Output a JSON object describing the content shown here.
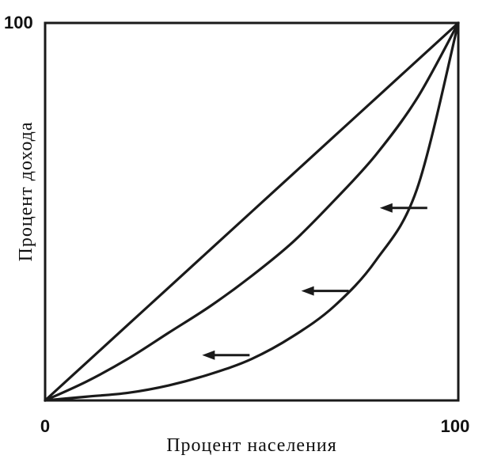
{
  "chart_data": {
    "type": "line",
    "title": "",
    "xlabel": "Процент населения",
    "ylabel": "Процент дохода",
    "xlim": [
      0,
      100
    ],
    "ylim": [
      0,
      100
    ],
    "x_ticks": [
      "0",
      "100"
    ],
    "y_ticks": [
      "100"
    ],
    "grid": false,
    "legend": "none",
    "series": [
      {
        "x": [
          0,
          10,
          20,
          30,
          40,
          50,
          60,
          70,
          80,
          90,
          100
        ],
        "y": [
          0,
          10,
          20,
          30,
          40,
          50,
          60,
          70,
          80,
          90,
          100
        ]
      },
      {
        "x": [
          0,
          10,
          20,
          30,
          40,
          50,
          60,
          70,
          80,
          90,
          100
        ],
        "y": [
          0,
          5,
          11,
          18,
          25,
          33,
          42,
          53,
          65,
          80,
          100
        ]
      },
      {
        "x": [
          0,
          10,
          20,
          30,
          40,
          50,
          60,
          70,
          80,
          90,
          100
        ],
        "y": [
          0,
          1,
          2,
          4,
          7,
          11,
          17,
          25,
          37,
          56,
          100
        ]
      }
    ],
    "annotations": [
      {
        "type": "arrow",
        "direction": "left",
        "x": 81,
        "y": 51
      },
      {
        "type": "arrow",
        "direction": "left",
        "x": 62,
        "y": 29
      },
      {
        "type": "arrow",
        "direction": "left",
        "x": 38,
        "y": 12
      }
    ]
  }
}
